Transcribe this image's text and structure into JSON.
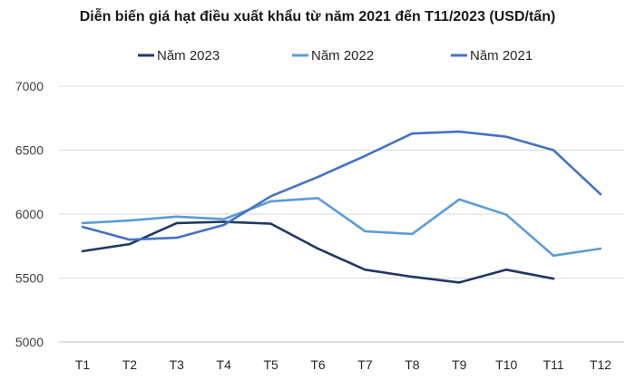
{
  "chart_data": {
    "type": "line",
    "title": "Diễn biến giá hạt điều xuất khẩu từ năm 2021 đến T11/2023 (USD/tấn)",
    "xlabel": "",
    "ylabel": "",
    "categories": [
      "T1",
      "T2",
      "T3",
      "T4",
      "T5",
      "T6",
      "T7",
      "T8",
      "T9",
      "T10",
      "T11",
      "T12"
    ],
    "ylim": [
      5000,
      7000
    ],
    "yticks": [
      5000,
      5500,
      6000,
      6500,
      7000
    ],
    "grid": "horizontal",
    "legend_position": "top-center",
    "series": [
      {
        "name": "Năm 2023",
        "color": "#1f3864",
        "values": [
          5710,
          5765,
          5930,
          5940,
          5925,
          5730,
          5565,
          5510,
          5465,
          5565,
          5495,
          null
        ]
      },
      {
        "name": "Năm 2022",
        "color": "#5b9bd5",
        "values": [
          5930,
          5950,
          5980,
          5960,
          6100,
          6125,
          5865,
          5845,
          6115,
          5995,
          5675,
          5730
        ]
      },
      {
        "name": "Năm 2021",
        "color": "#4472c4",
        "values": [
          5900,
          5800,
          5815,
          5915,
          6140,
          6290,
          6455,
          6630,
          6645,
          6605,
          6500,
          6155
        ]
      }
    ]
  }
}
